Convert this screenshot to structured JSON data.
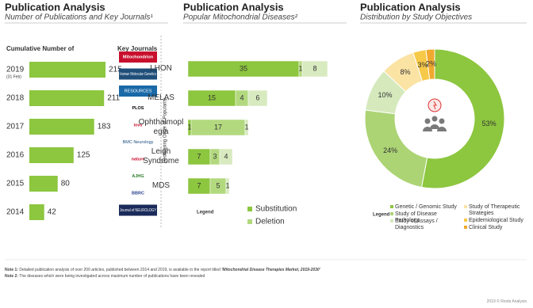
{
  "chart_data": [
    {
      "type": "bar",
      "orientation": "horizontal",
      "title": "Publication Analysis",
      "subtitle": "Number of Publications and Key Journals¹",
      "x_label": "Cumulative Number of",
      "categories": [
        "2019",
        "2018",
        "2017",
        "2016",
        "2015",
        "2014"
      ],
      "category_note": "(31 Feb)",
      "values": [
        215,
        211,
        183,
        125,
        80,
        42
      ],
      "color": "#8dc63f",
      "journals_title": "Key Journals",
      "journals": [
        "Mitochondrion",
        "Human Molecular Genetics",
        "RESOURCES",
        "PLOS",
        "iovs",
        "BMC Neurology",
        "nature",
        "AJHG",
        "BBRC",
        "Journal of NEUROLOGY"
      ],
      "journals_axis_label": "Decreasing Order of Popularity"
    },
    {
      "type": "stacked_bar",
      "orientation": "horizontal",
      "title": "Publication Analysis",
      "subtitle": "Popular Mitochondrial Diseases²",
      "categories": [
        "LHON",
        "MELAS",
        "Ophthalmoplegia",
        "Leigh Syndrome",
        "MDS"
      ],
      "series": [
        {
          "name": "Substitution",
          "color": "#8dc63f",
          "values": [
            35,
            15,
            1,
            7,
            7
          ]
        },
        {
          "name": "Deletion",
          "color": "#b3d97f",
          "values": [
            1,
            4,
            17,
            3,
            5
          ]
        },
        {
          "color": "#d8eac0",
          "values": [
            8,
            6,
            1,
            4,
            1
          ]
        }
      ],
      "legend_title": "Legend"
    },
    {
      "type": "pie",
      "donut": true,
      "title": "Publication Analysis",
      "subtitle": "Distribution by Study Objectives",
      "categories": [
        "Genetic / Genomic Study",
        "Study of Disease Pathology",
        "Study of Assays / Diagnostics",
        "Study of Therapeutic Strategies",
        "Epidemiological Study",
        "Clinical Study"
      ],
      "values": [
        53,
        24,
        10,
        8,
        3,
        2
      ],
      "value_labels": [
        "53%",
        "24%",
        "10%",
        "8%",
        "3%",
        "2%"
      ],
      "colors": [
        "#8dc63f",
        "#acd475",
        "#d5e9bd",
        "#fbe3a4",
        "#f7c948",
        "#f0a92e"
      ],
      "legend_title": "Legend"
    }
  ],
  "notes": [
    {
      "label": "Note 1:",
      "text": "Detailed publication analysis of over 200 articles, published between 2014 and 2019, is available in the report titled",
      "title": "'Mitochondrial Disease Therapies Market, 2019-2030'"
    },
    {
      "label": "Note 2:",
      "text": "The diseases which were being investigated across maximum number of publications have been revealed"
    }
  ],
  "footer": "2019 © Roots Analysis"
}
